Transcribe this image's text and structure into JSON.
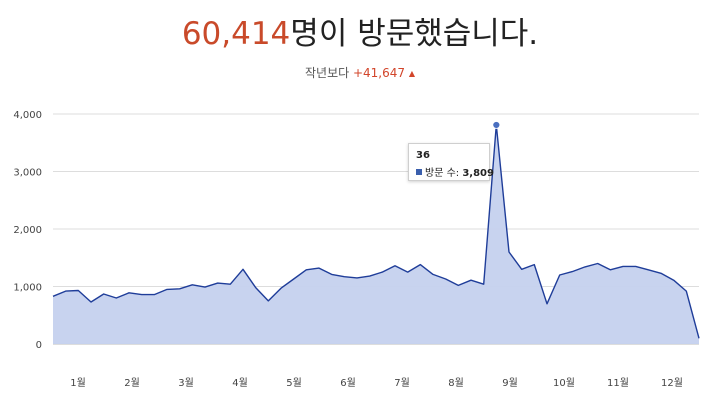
{
  "headline": {
    "count": "60,414",
    "suffix": "명이 방문했습니다."
  },
  "subline": {
    "label": "작년보다 ",
    "delta": "+41,647",
    "arrow": "▲"
  },
  "tooltip": {
    "title": "36",
    "series_label": "방문 수:",
    "value": "3,809"
  },
  "colors": {
    "line": "#1f3d99",
    "fill": "#c5d1ee",
    "accent": "#c94a2a",
    "grid": "#dddddd"
  },
  "chart_data": {
    "type": "area",
    "x": [
      1,
      2,
      3,
      4,
      5,
      6,
      7,
      8,
      9,
      10,
      11,
      12,
      13,
      14,
      15,
      16,
      17,
      18,
      19,
      20,
      21,
      22,
      23,
      24,
      25,
      26,
      27,
      28,
      29,
      30,
      31,
      32,
      33,
      34,
      35,
      36,
      37,
      38,
      39,
      40,
      41,
      42,
      43,
      44,
      45,
      46,
      47,
      48,
      49,
      50,
      51
    ],
    "values": [
      830,
      920,
      930,
      730,
      870,
      800,
      890,
      860,
      860,
      950,
      960,
      1030,
      990,
      1060,
      1040,
      1300,
      980,
      750,
      970,
      1130,
      1290,
      1320,
      1210,
      1170,
      1150,
      1180,
      1250,
      1360,
      1250,
      1380,
      1210,
      1130,
      1020,
      1110,
      1040,
      3809,
      1600,
      1300,
      1380,
      700,
      1200,
      1260,
      1340,
      1400,
      1290,
      1350,
      1350,
      1290,
      1230,
      1110,
      920
    ],
    "last_value": 100,
    "months": [
      "1월",
      "2월",
      "3월",
      "4월",
      "5월",
      "6월",
      "7월",
      "8월",
      "9월",
      "10월",
      "11월",
      "12월"
    ],
    "y_ticks": [
      "0",
      "1,000",
      "2,000",
      "3,000",
      "4,000"
    ],
    "ylim": [
      0,
      4000
    ],
    "highlight_index": 35,
    "grid": true
  }
}
